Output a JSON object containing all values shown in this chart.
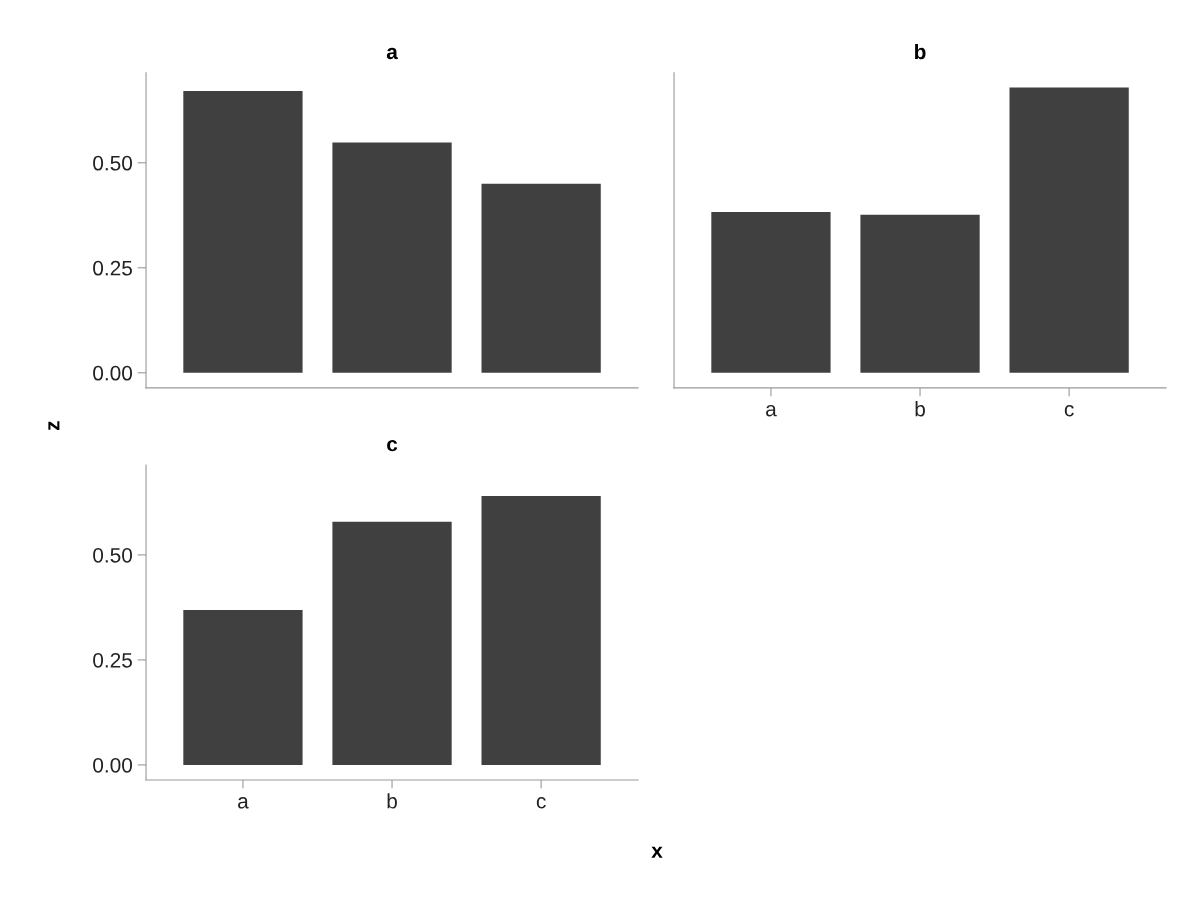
{
  "chart_data": [
    {
      "type": "bar",
      "title": "a",
      "ylabel": "z",
      "categories": [
        null,
        null,
        null
      ],
      "values": [
        0.671,
        0.548,
        0.45
      ],
      "color": "#404040",
      "ylim": [
        -0.036,
        0.714
      ],
      "yticks": [
        {
          "value": 0,
          "label": "0.00"
        },
        {
          "value": 0.25,
          "label": "0.25"
        },
        {
          "value": 0.5,
          "label": "0.50"
        }
      ],
      "tick_labels": "y"
    },
    {
      "type": "bar",
      "title": "b",
      "categories": [
        "a",
        "b",
        "c"
      ],
      "values": [
        0.383,
        0.376,
        0.679
      ],
      "color": "#404040",
      "ylim": [
        -0.036,
        0.714
      ],
      "tick_labels": "x"
    },
    {
      "type": "bar",
      "title": "c",
      "xlabel": "x",
      "categories": [
        "a",
        "b",
        "c"
      ],
      "values": [
        0.369,
        0.579,
        0.64
      ],
      "color": "#404040",
      "ylim": [
        -0.036,
        0.714
      ],
      "yticks": [
        {
          "value": 0,
          "label": "0.00"
        },
        {
          "value": 0.25,
          "label": "0.25"
        },
        {
          "value": 0.5,
          "label": "0.50"
        }
      ]
    }
  ]
}
